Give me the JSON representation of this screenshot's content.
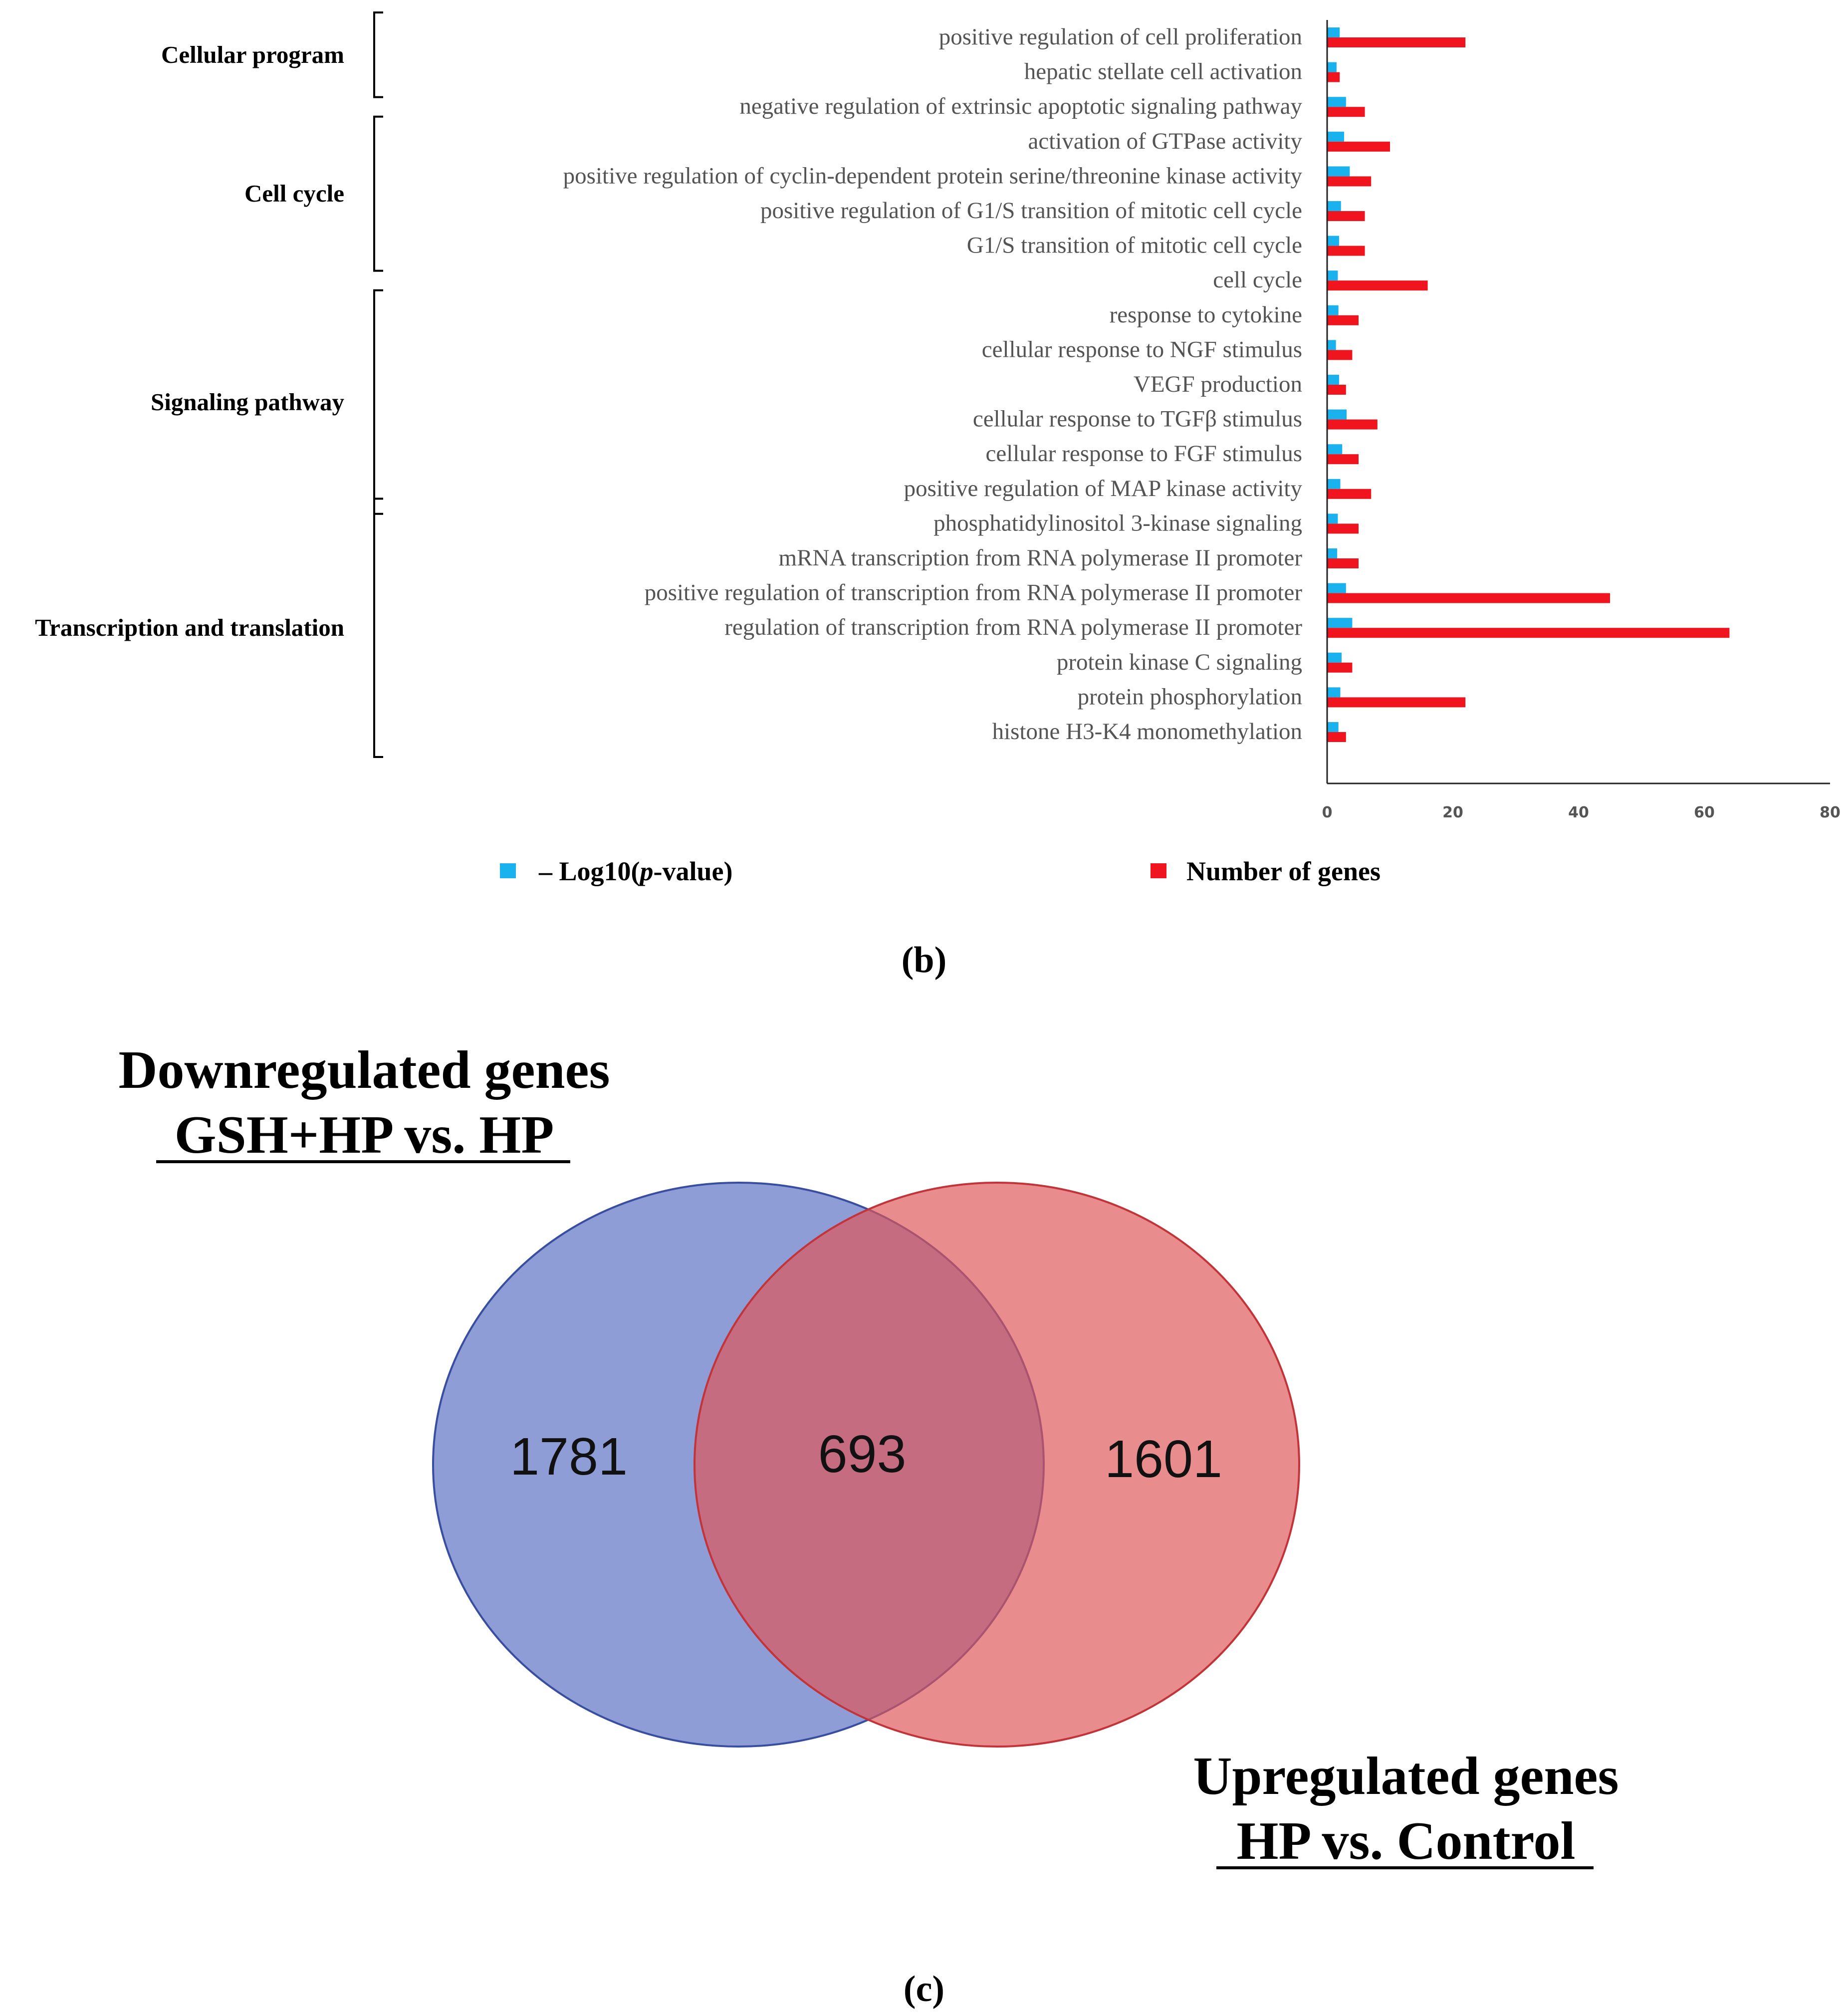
{
  "chart_data": [
    {
      "type": "bar",
      "orientation": "horizontal",
      "categories": [
        "positive regulation of cell proliferation",
        "hepatic stellate cell activation",
        "negative regulation of extrinsic apoptotic signaling pathway",
        "activation of GTPase activity",
        "positive regulation of cyclin-dependent protein serine/threonine kinase activity",
        "positive regulation of G1/S transition of mitotic cell cycle",
        "G1/S transition of mitotic cell cycle",
        "cell cycle",
        "response to cytokine",
        "cellular response to NGF stimulus",
        "VEGF production",
        "cellular response to TGFβ stimulus",
        "cellular response to FGF stimulus",
        "positive regulation of MAP kinase activity",
        "phosphatidylinositol 3-kinase signaling",
        "mRNA transcription from RNA polymerase II promoter",
        "positive regulation of transcription from RNA polymerase II promoter",
        "regulation of transcription from RNA polymerase II promoter",
        "protein kinase C signaling",
        "protein phosphorylation",
        "histone H3-K4 monomethylation"
      ],
      "series": [
        {
          "name": "– Log10(p-value)",
          "color": "#1ab2ee",
          "values": [
            2.0,
            1.5,
            3.0,
            2.7,
            3.6,
            2.2,
            1.9,
            1.7,
            1.8,
            1.4,
            1.9,
            3.1,
            2.4,
            2.1,
            1.7,
            1.6,
            3.0,
            4.0,
            2.3,
            2.1,
            1.8
          ]
        },
        {
          "name": "Number of genes",
          "color": "#f0141e",
          "values": [
            22,
            2,
            6,
            10,
            7,
            6,
            6,
            16,
            5,
            4,
            3,
            8,
            5,
            7,
            5,
            5,
            45,
            64,
            4,
            22,
            3
          ]
        }
      ],
      "groups": [
        {
          "label": "Cellular program",
          "from": 0,
          "to": 1
        },
        {
          "label": "Cell cycle",
          "from": 3,
          "to": 6
        },
        {
          "label": "Signaling pathway",
          "from": 8,
          "to": 13
        },
        {
          "label": "Transcription and translation",
          "from": 14,
          "to": 20
        }
      ],
      "xlim": [
        0,
        80
      ],
      "xticks": [
        "0",
        "20",
        "40",
        "60",
        "80"
      ],
      "legend": {
        "pvalue_prefix": "– Log10(",
        "pvalue_italic": "p",
        "pvalue_suffix": "-value)",
        "genes_label": "Number of genes"
      },
      "panel_label": "(b)"
    },
    {
      "type": "venn",
      "sets": [
        {
          "title": "Downregulated genes",
          "subtitle": "GSH+HP vs. HP",
          "only": "1781",
          "color": "#5a6fc4"
        },
        {
          "title": "Upregulated genes",
          "subtitle": "HP vs. Control",
          "only": "1601",
          "color": "#df5558"
        }
      ],
      "intersection": "693",
      "overlap_color": "#a85872",
      "panel_label": "(c)"
    }
  ]
}
